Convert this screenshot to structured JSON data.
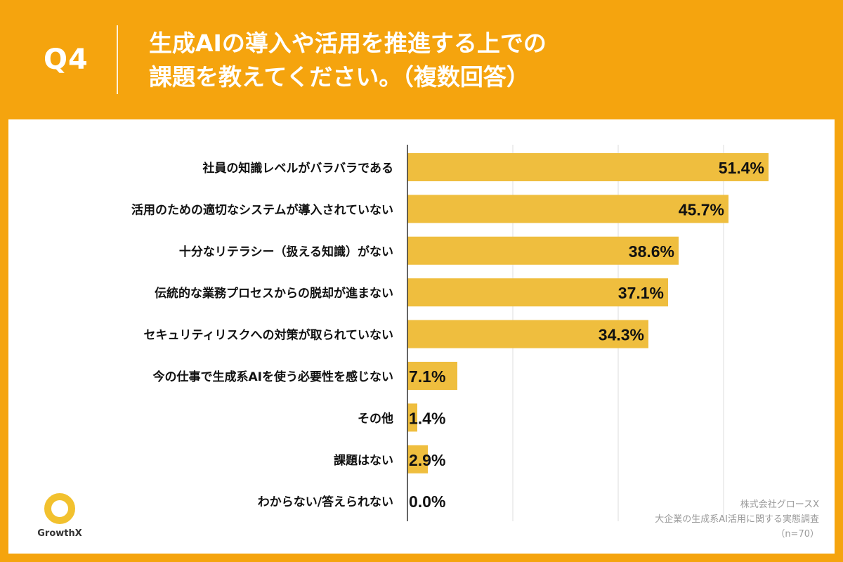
{
  "header": {
    "question_number": "Q4",
    "title_line1": "生成AIの導入や活用を推進する上での",
    "title_line2": "課題を教えてください。（複数回答）"
  },
  "footer": {
    "logo_text": "GrowthX",
    "source_company": "株式会社グロースX",
    "source_survey": "大企業の生成系AI活用に関する実態調査",
    "source_n": "（n=70）"
  },
  "colors": {
    "background": "#F5A40E",
    "bar": "#EFBE3E",
    "panel": "#FFFFFF",
    "logo": "#F2C12E"
  },
  "chart_data": {
    "type": "bar",
    "orientation": "horizontal",
    "unit": "%",
    "xlim": [
      0,
      60
    ],
    "grid": true,
    "categories": [
      "社員の知識レベルがバラバラである",
      "活用のための適切なシステムが導入されていない",
      "十分なリテラシー（扱える知識）がない",
      "伝統的な業務プロセスからの脱却が進まない",
      "セキュリティリスクへの対策が取られていない",
      "今の仕事で生成系AIを使う必要性を感じない",
      "その他",
      "課題はない",
      "わからない/答えられない"
    ],
    "values": [
      51.4,
      45.7,
      38.6,
      37.1,
      34.3,
      7.1,
      1.4,
      2.9,
      0.0
    ],
    "value_labels": [
      "51.4%",
      "45.7%",
      "38.6%",
      "37.1%",
      "34.3%",
      "7.1%",
      "1.4%",
      "2.9%",
      "0.0%"
    ]
  }
}
